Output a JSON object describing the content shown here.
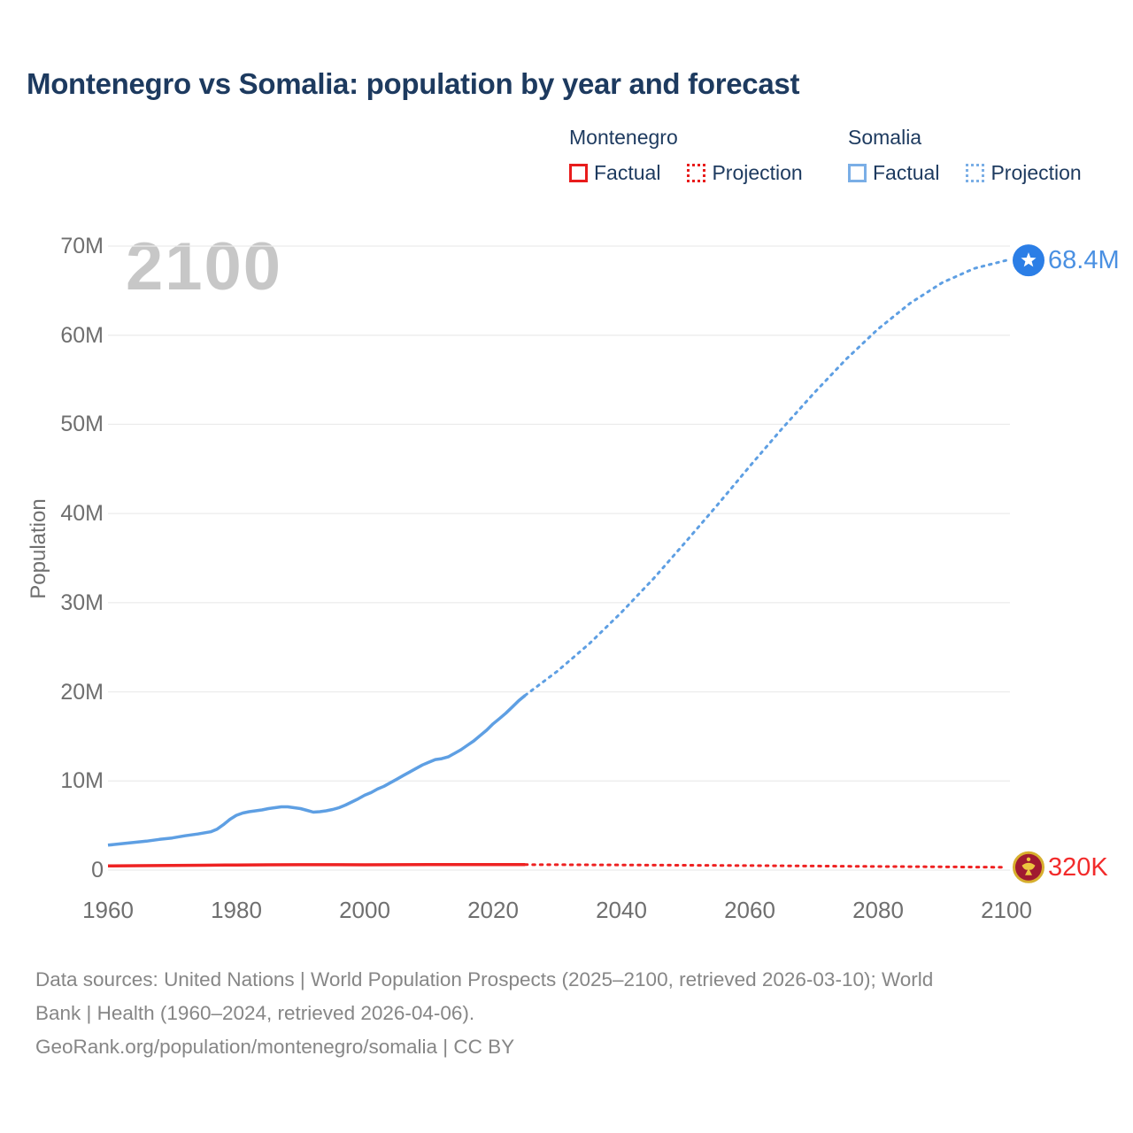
{
  "title": "Montenegro vs Somalia: population by year and forecast",
  "watermark_year": "2100",
  "legend": {
    "groups": [
      {
        "name": "Montenegro",
        "color": "#e81c1c",
        "items": [
          {
            "label": "Factual",
            "style": "solid"
          },
          {
            "label": "Projection",
            "style": "dotted"
          }
        ]
      },
      {
        "name": "Somalia",
        "color": "#7aaee6",
        "items": [
          {
            "label": "Factual",
            "style": "solid"
          },
          {
            "label": "Projection",
            "style": "dotted"
          }
        ]
      }
    ]
  },
  "y_axis": {
    "title": "Population",
    "ticks": [
      {
        "label": "70M",
        "value": 70
      },
      {
        "label": "60M",
        "value": 60
      },
      {
        "label": "50M",
        "value": 50
      },
      {
        "label": "40M",
        "value": 40
      },
      {
        "label": "30M",
        "value": 30
      },
      {
        "label": "20M",
        "value": 20
      },
      {
        "label": "10M",
        "value": 10
      },
      {
        "label": "0",
        "value": 0
      }
    ]
  },
  "x_axis": {
    "ticks": [
      {
        "label": "1960",
        "value": 1960
      },
      {
        "label": "1980",
        "value": 1980
      },
      {
        "label": "2000",
        "value": 2000
      },
      {
        "label": "2020",
        "value": 2020
      },
      {
        "label": "2040",
        "value": 2040
      },
      {
        "label": "2060",
        "value": 2060
      },
      {
        "label": "2080",
        "value": 2080
      },
      {
        "label": "2100",
        "value": 2100
      }
    ]
  },
  "footer": {
    "lines": [
      "Data sources: United Nations | World Population Prospects (2025–2100, retrieved 2026-03-10); World",
      "Bank | Health (1960–2024, retrieved 2026-04-06).",
      "GeoRank.org/population/montenegro/somalia | CC BY"
    ]
  },
  "chart_data": {
    "type": "line",
    "title": "Montenegro vs Somalia: population by year and forecast",
    "xlabel": "",
    "ylabel": "Population",
    "xlim": [
      1960,
      2100
    ],
    "ylim_millions": [
      0,
      70
    ],
    "grid": "horizontal",
    "legend_position": "top-right",
    "units": "millions of people",
    "series": [
      {
        "name": "Somalia factual",
        "color": "#5e9fe3",
        "style": "solid",
        "points": [
          [
            1960,
            2.8
          ],
          [
            1962,
            2.95
          ],
          [
            1964,
            3.1
          ],
          [
            1966,
            3.25
          ],
          [
            1968,
            3.45
          ],
          [
            1970,
            3.6
          ],
          [
            1972,
            3.85
          ],
          [
            1974,
            4.05
          ],
          [
            1976,
            4.3
          ],
          [
            1977,
            4.6
          ],
          [
            1978,
            5.1
          ],
          [
            1979,
            5.7
          ],
          [
            1980,
            6.15
          ],
          [
            1981,
            6.4
          ],
          [
            1982,
            6.55
          ],
          [
            1983,
            6.65
          ],
          [
            1984,
            6.75
          ],
          [
            1985,
            6.9
          ],
          [
            1986,
            7.0
          ],
          [
            1987,
            7.1
          ],
          [
            1988,
            7.1
          ],
          [
            1989,
            7.0
          ],
          [
            1990,
            6.9
          ],
          [
            1991,
            6.7
          ],
          [
            1992,
            6.5
          ],
          [
            1993,
            6.55
          ],
          [
            1994,
            6.65
          ],
          [
            1995,
            6.8
          ],
          [
            1996,
            7.0
          ],
          [
            1997,
            7.3
          ],
          [
            1998,
            7.65
          ],
          [
            1999,
            8.0
          ],
          [
            2000,
            8.4
          ],
          [
            2001,
            8.7
          ],
          [
            2002,
            9.1
          ],
          [
            2003,
            9.4
          ],
          [
            2004,
            9.8
          ],
          [
            2005,
            10.2
          ],
          [
            2006,
            10.6
          ],
          [
            2007,
            11.0
          ],
          [
            2008,
            11.4
          ],
          [
            2009,
            11.8
          ],
          [
            2010,
            12.1
          ],
          [
            2011,
            12.4
          ],
          [
            2012,
            12.5
          ],
          [
            2013,
            12.7
          ],
          [
            2014,
            13.1
          ],
          [
            2015,
            13.5
          ],
          [
            2016,
            14.0
          ],
          [
            2017,
            14.5
          ],
          [
            2018,
            15.1
          ],
          [
            2019,
            15.7
          ],
          [
            2020,
            16.4
          ],
          [
            2021,
            17.0
          ],
          [
            2022,
            17.6
          ],
          [
            2023,
            18.3
          ],
          [
            2024,
            19.0
          ],
          [
            2025,
            19.6
          ]
        ]
      },
      {
        "name": "Somalia projection",
        "color": "#5e9fe3",
        "style": "dotted",
        "points": [
          [
            2025,
            19.6
          ],
          [
            2030,
            22.3
          ],
          [
            2035,
            25.4
          ],
          [
            2040,
            28.9
          ],
          [
            2045,
            32.7
          ],
          [
            2050,
            36.8
          ],
          [
            2055,
            41.0
          ],
          [
            2060,
            45.3
          ],
          [
            2065,
            49.5
          ],
          [
            2070,
            53.5
          ],
          [
            2075,
            57.3
          ],
          [
            2080,
            60.7
          ],
          [
            2085,
            63.6
          ],
          [
            2090,
            65.9
          ],
          [
            2095,
            67.5
          ],
          [
            2100,
            68.4
          ]
        ]
      },
      {
        "name": "Montenegro factual",
        "color": "#ee2222",
        "style": "solid",
        "points": [
          [
            1960,
            0.47
          ],
          [
            1965,
            0.5
          ],
          [
            1970,
            0.52
          ],
          [
            1975,
            0.55
          ],
          [
            1980,
            0.58
          ],
          [
            1985,
            0.6
          ],
          [
            1990,
            0.61
          ],
          [
            1995,
            0.61
          ],
          [
            2000,
            0.6
          ],
          [
            2005,
            0.61
          ],
          [
            2010,
            0.62
          ],
          [
            2015,
            0.62
          ],
          [
            2020,
            0.62
          ],
          [
            2025,
            0.62
          ]
        ]
      },
      {
        "name": "Montenegro projection",
        "color": "#ee2222",
        "style": "dotted",
        "points": [
          [
            2025,
            0.62
          ],
          [
            2030,
            0.61
          ],
          [
            2040,
            0.58
          ],
          [
            2050,
            0.55
          ],
          [
            2060,
            0.51
          ],
          [
            2070,
            0.46
          ],
          [
            2080,
            0.41
          ],
          [
            2090,
            0.37
          ],
          [
            2100,
            0.32
          ]
        ]
      }
    ],
    "end_labels": [
      {
        "series": "Somalia",
        "text": "68.4M",
        "value_m": 68.4,
        "marker": "somalia-flag-circle",
        "marker_color": "#2b7ee6",
        "text_color": "#4a90e2"
      },
      {
        "series": "Montenegro",
        "text": "320K",
        "value_m": 0.32,
        "marker": "montenegro-flag-circle",
        "marker_color": "#a01a30",
        "ring_color": "#d7af2e",
        "emblem_color": "#ecc63f",
        "text_color": "#f22b2b"
      }
    ]
  }
}
